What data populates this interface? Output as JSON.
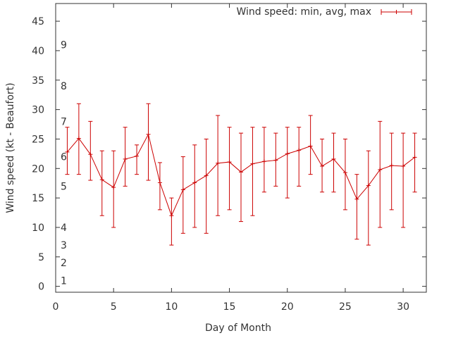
{
  "chart_data": {
    "type": "line",
    "title": "",
    "xlabel": "Day of Month",
    "ylabel": "Wind speed (kt - Beaufort)",
    "xlim": [
      0,
      32
    ],
    "ylim": [
      -1,
      48
    ],
    "xticks": [
      0,
      5,
      10,
      15,
      20,
      25,
      30
    ],
    "yticks": [
      0,
      5,
      10,
      15,
      20,
      25,
      30,
      35,
      40,
      45
    ],
    "beaufort_labels": [
      {
        "label": "1",
        "value": 1
      },
      {
        "label": "2",
        "value": 4
      },
      {
        "label": "3",
        "value": 7
      },
      {
        "label": "4",
        "value": 10
      },
      {
        "label": "5",
        "value": 17
      },
      {
        "label": "6",
        "value": 22
      },
      {
        "label": "7",
        "value": 28
      },
      {
        "label": "8",
        "value": 34
      },
      {
        "label": "9",
        "value": 41
      }
    ],
    "grid": false,
    "legend_position": "top-right",
    "color": "#cc0000",
    "series": [
      {
        "name": "Wind speed: min, avg, max",
        "x": [
          1,
          2,
          3,
          4,
          5,
          6,
          7,
          8,
          9,
          10,
          11,
          12,
          13,
          14,
          15,
          16,
          17,
          18,
          19,
          20,
          21,
          22,
          23,
          24,
          25,
          26,
          27,
          28,
          29,
          30,
          31
        ],
        "avg": [
          22.8,
          25.1,
          22.4,
          18.1,
          16.8,
          21.6,
          22.1,
          25.8,
          17.6,
          12.0,
          16.4,
          17.6,
          18.8,
          20.9,
          21.1,
          19.4,
          20.8,
          21.2,
          21.4,
          22.5,
          23.1,
          23.8,
          20.4,
          21.6,
          19.3,
          14.8,
          17.1,
          19.8,
          20.5,
          20.4,
          21.9
        ],
        "min": [
          19,
          19,
          18,
          12,
          10,
          17,
          19,
          18,
          13,
          7,
          9,
          10,
          9,
          12,
          13,
          11,
          12,
          16,
          17,
          15,
          17,
          19,
          16,
          16,
          13,
          8,
          7,
          10,
          13,
          10,
          16
        ],
        "max": [
          27,
          31,
          28,
          23,
          23,
          27,
          24,
          31,
          21,
          15,
          22,
          24,
          25,
          29,
          27,
          26,
          27,
          27,
          26,
          27,
          27,
          29,
          25,
          26,
          25,
          19,
          23,
          28,
          26,
          26,
          26
        ]
      }
    ]
  }
}
